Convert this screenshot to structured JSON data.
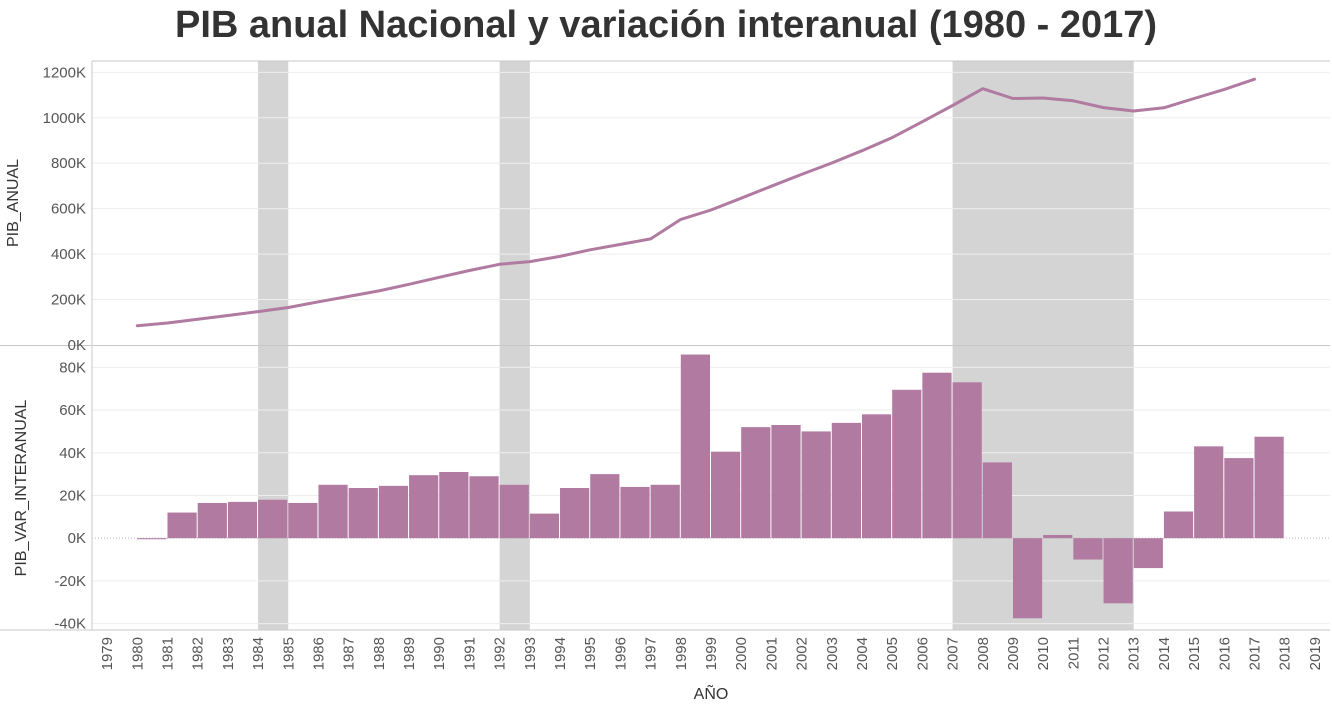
{
  "title": "PIB anual Nacional y variación interanual (1980 - 2017)",
  "colors": {
    "series": "#b07aa1",
    "shade": "#d4d4d4",
    "grid": "#eeeeee",
    "axis": "#c8c8c8",
    "text": "#555555"
  },
  "chart_data": [
    {
      "type": "line",
      "name": "pib-anual",
      "ylabel": "PIB_ANUAL",
      "ylim": [
        0,
        1250000
      ],
      "yticks": [
        0,
        200000,
        400000,
        600000,
        800000,
        1000000,
        1200000
      ],
      "ytick_labels": [
        "0K",
        "200K",
        "400K",
        "600K",
        "800K",
        "1000K",
        "1200K"
      ],
      "x": [
        1980,
        1981,
        1982,
        1983,
        1984,
        1985,
        1986,
        1987,
        1988,
        1989,
        1990,
        1991,
        1992,
        1993,
        1994,
        1995,
        1996,
        1997,
        1998,
        1999,
        2000,
        2001,
        2002,
        2003,
        2004,
        2005,
        2006,
        2007,
        2008,
        2009,
        2010,
        2011,
        2012,
        2013,
        2014,
        2015,
        2016,
        2017
      ],
      "values": [
        85000,
        97000,
        113000,
        130000,
        147000,
        165000,
        190000,
        214000,
        238000,
        267000,
        298000,
        328000,
        355000,
        367000,
        390000,
        419000,
        443000,
        467000,
        553000,
        594000,
        646000,
        699000,
        751000,
        801000,
        855000,
        913000,
        983000,
        1054000,
        1128000,
        1085000,
        1087000,
        1075000,
        1045000,
        1030000,
        1044000,
        1085000,
        1125000,
        1170000
      ]
    },
    {
      "type": "bar",
      "name": "pib-var-interanual",
      "ylabel": "PIB_VAR_INTERANUAL",
      "ylim": [
        -43000,
        90000
      ],
      "yticks": [
        -40000,
        -20000,
        0,
        20000,
        40000,
        60000,
        80000
      ],
      "ytick_labels": [
        "-40K",
        "-20K",
        "0K",
        "20K",
        "40K",
        "60K",
        "80K"
      ],
      "x": [
        1980,
        1981,
        1982,
        1983,
        1984,
        1985,
        1986,
        1987,
        1988,
        1989,
        1990,
        1991,
        1992,
        1993,
        1994,
        1995,
        1996,
        1997,
        1998,
        1999,
        2000,
        2001,
        2002,
        2003,
        2004,
        2005,
        2006,
        2007,
        2008,
        2009,
        2010,
        2011,
        2012,
        2013,
        2014,
        2015,
        2016,
        2017
      ],
      "values": [
        -500,
        12000,
        16500,
        17000,
        18000,
        16500,
        25000,
        23500,
        24500,
        29500,
        31000,
        29000,
        25000,
        11500,
        23500,
        30000,
        24000,
        25000,
        86000,
        40500,
        52000,
        53000,
        50000,
        54000,
        58000,
        69500,
        77500,
        73000,
        35500,
        -37500,
        1500,
        -10000,
        -30500,
        -14000,
        12500,
        43000,
        37500,
        47500
      ]
    }
  ],
  "x_axis": {
    "label": "AÑO",
    "categories": [
      1979,
      1980,
      1981,
      1982,
      1983,
      1984,
      1985,
      1986,
      1987,
      1988,
      1989,
      1990,
      1991,
      1992,
      1993,
      1994,
      1995,
      1996,
      1997,
      1998,
      1999,
      2000,
      2001,
      2002,
      2003,
      2004,
      2005,
      2006,
      2007,
      2008,
      2009,
      2010,
      2011,
      2012,
      2013,
      2014,
      2015,
      2016,
      2017,
      2018,
      2019
    ]
  },
  "shaded_periods": [
    {
      "start": 1984,
      "end": 1985
    },
    {
      "start": 1992,
      "end": 1993
    },
    {
      "start": 2007,
      "end": 2013
    }
  ]
}
